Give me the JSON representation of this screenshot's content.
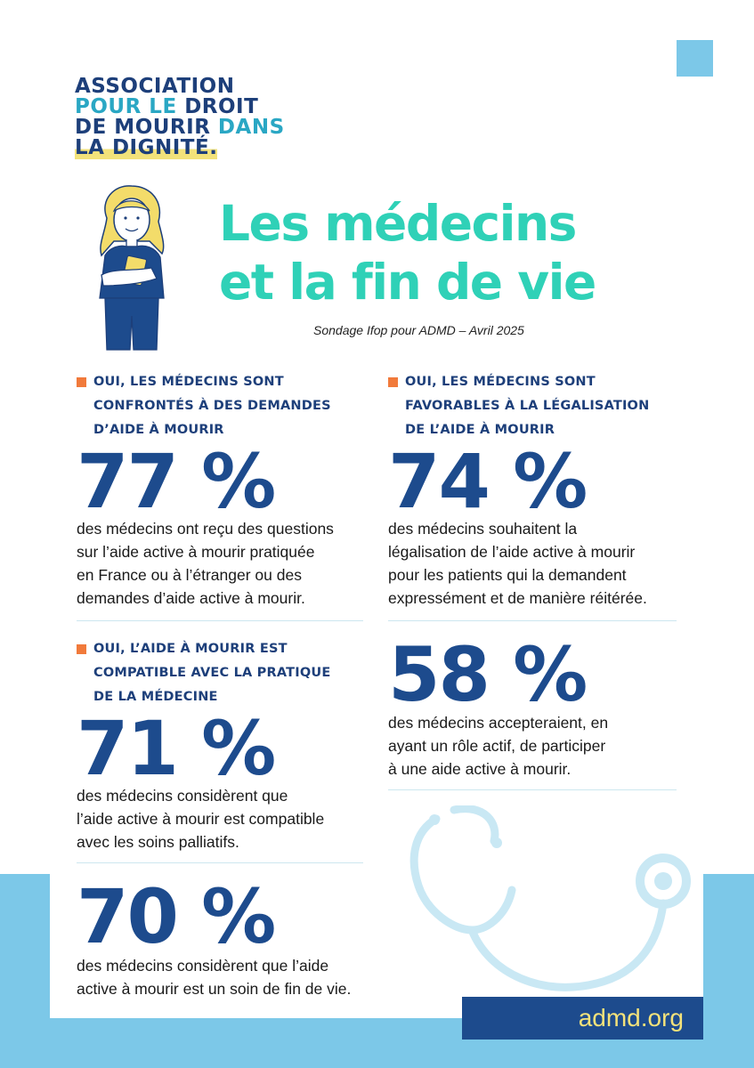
{
  "logo": {
    "line1": "ASSOCIATION",
    "line2a": "POUR LE",
    "line2b": "DROIT",
    "line3a": "DE MOURIR",
    "line3b": "DANS",
    "line4": "LA DIGNITÉ."
  },
  "title": {
    "line1": "Les médecins",
    "line2": "et la fin de vie"
  },
  "subtitle": "Sondage Ifop pour ADMD – Avril 2025",
  "stats": [
    {
      "heading": [
        "OUI, LES MÉDECINS SONT",
        "CONFRONTÉS À DES DEMANDES",
        "D’AIDE À MOURIR"
      ],
      "value": "77 %",
      "text": [
        "des médecins ont reçu des questions",
        "sur l’aide active à mourir pratiquée",
        "en France ou à l’étranger ou des",
        "demandes d’aide active à mourir."
      ]
    },
    {
      "heading": [
        "OUI, LES MÉDECINS SONT",
        "FAVORABLES À LA LÉGALISATION",
        "DE L’AIDE À MOURIR"
      ],
      "value": "74 %",
      "text": [
        "des médecins souhaitent la",
        "légalisation de l’aide active à mourir",
        "pour les patients qui la demandent",
        "expressément et de manière réitérée."
      ]
    },
    {
      "heading": [
        "OUI, L’AIDE À MOURIR EST",
        "COMPATIBLE AVEC LA PRATIQUE",
        "DE LA MÉDECINE"
      ],
      "value": "71 %",
      "text": [
        "des médecins considèrent que",
        "l’aide active à mourir est compatible",
        "avec les soins palliatifs."
      ]
    },
    {
      "value": "58 %",
      "text": [
        "des médecins accepteraient, en",
        "ayant un rôle actif, de participer",
        "à une aide active à mourir."
      ]
    },
    {
      "value": "70 %",
      "text": [
        "des médecins considèrent que l’aide",
        "active à mourir est un soin de fin de vie."
      ]
    }
  ],
  "footer": {
    "url": "admd.org"
  },
  "colors": {
    "title": "#2fd1b7",
    "stat": "#1d4b8d",
    "bullet": "#f17a3b",
    "band": "#7cc8e8",
    "footer_text": "#f4e27a"
  }
}
